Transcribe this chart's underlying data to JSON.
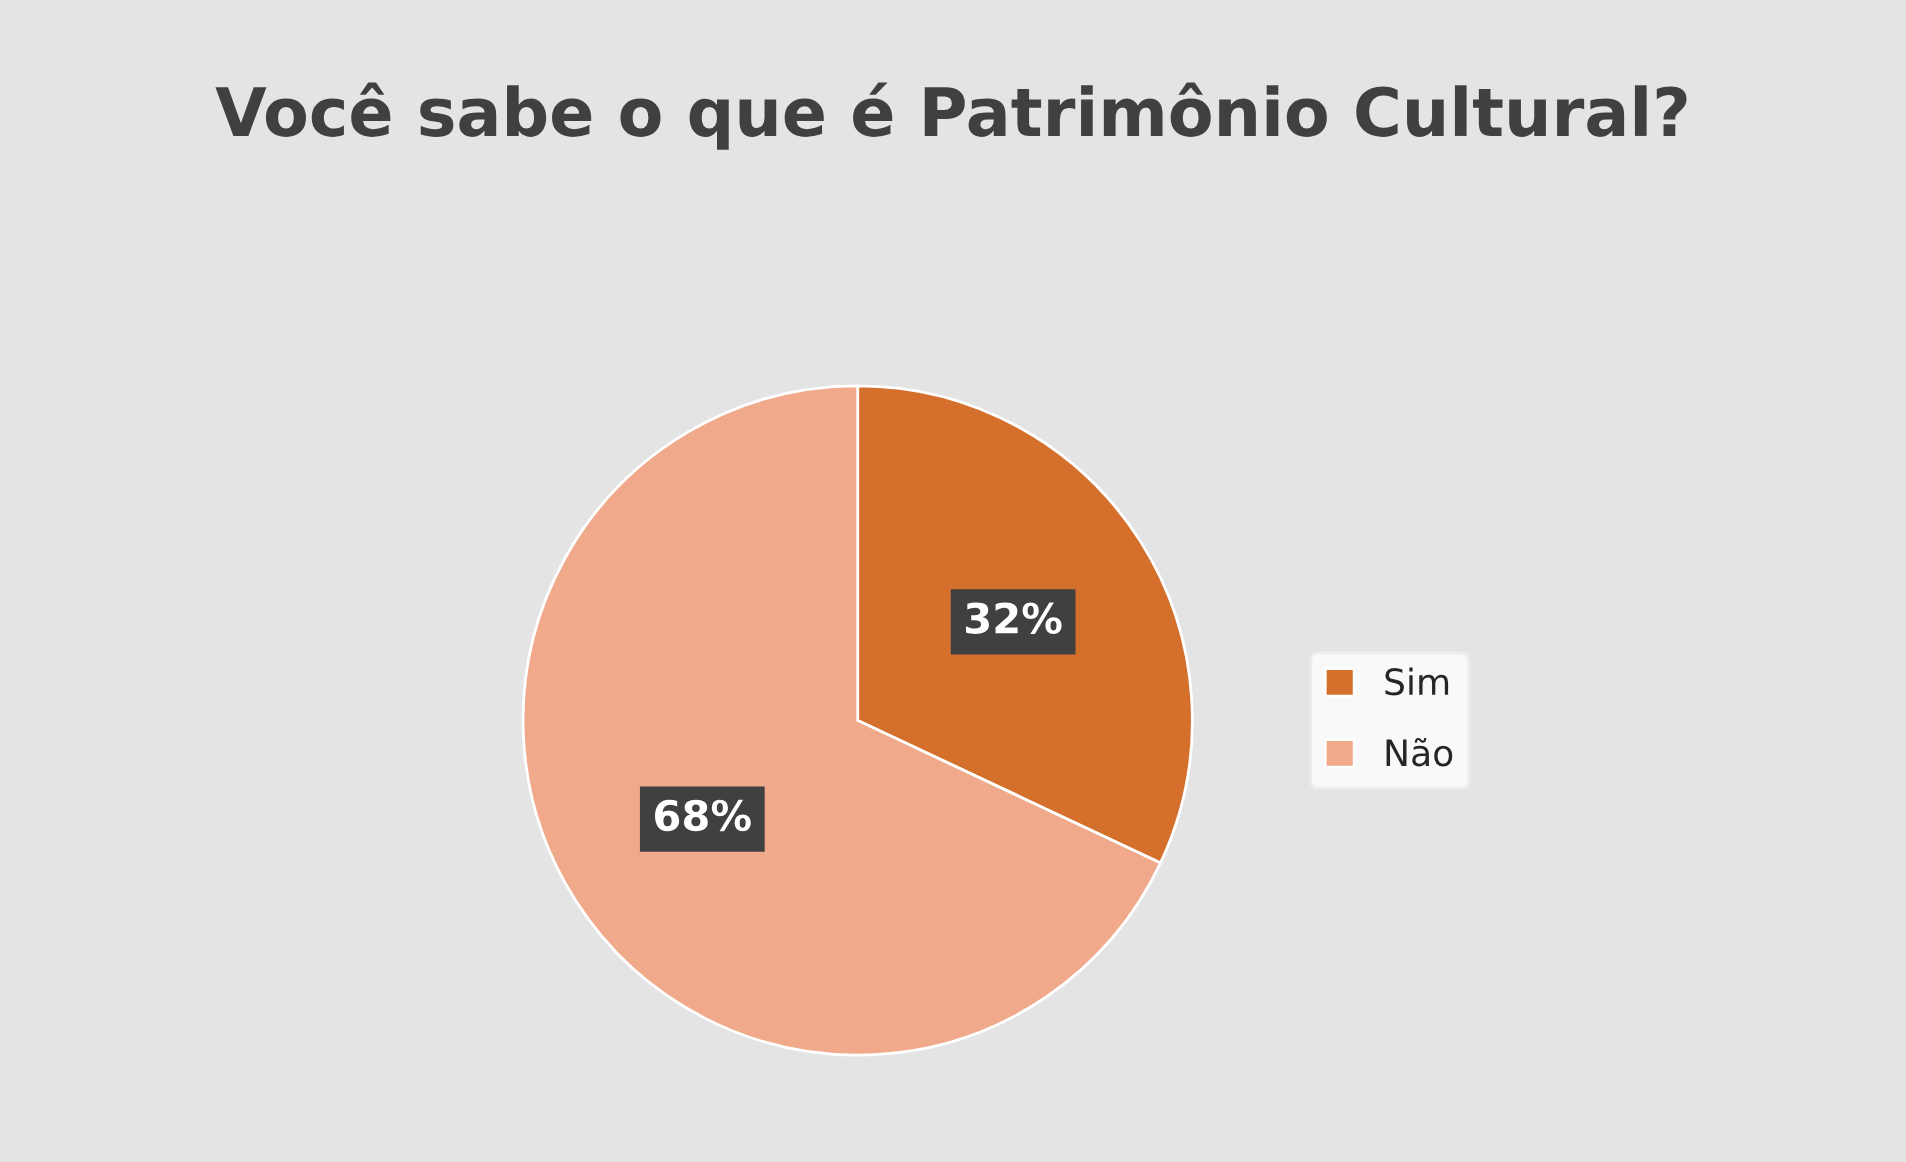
{
  "chart_data": {
    "type": "pie",
    "title": "Você sabe o que é Patrimônio Cultural?",
    "categories": [
      "Sim",
      "Não"
    ],
    "values": [
      32,
      68
    ],
    "colors": [
      "#d4702b",
      "#f0a98a"
    ],
    "value_labels": [
      "32%",
      "68%"
    ],
    "legend": "right"
  }
}
